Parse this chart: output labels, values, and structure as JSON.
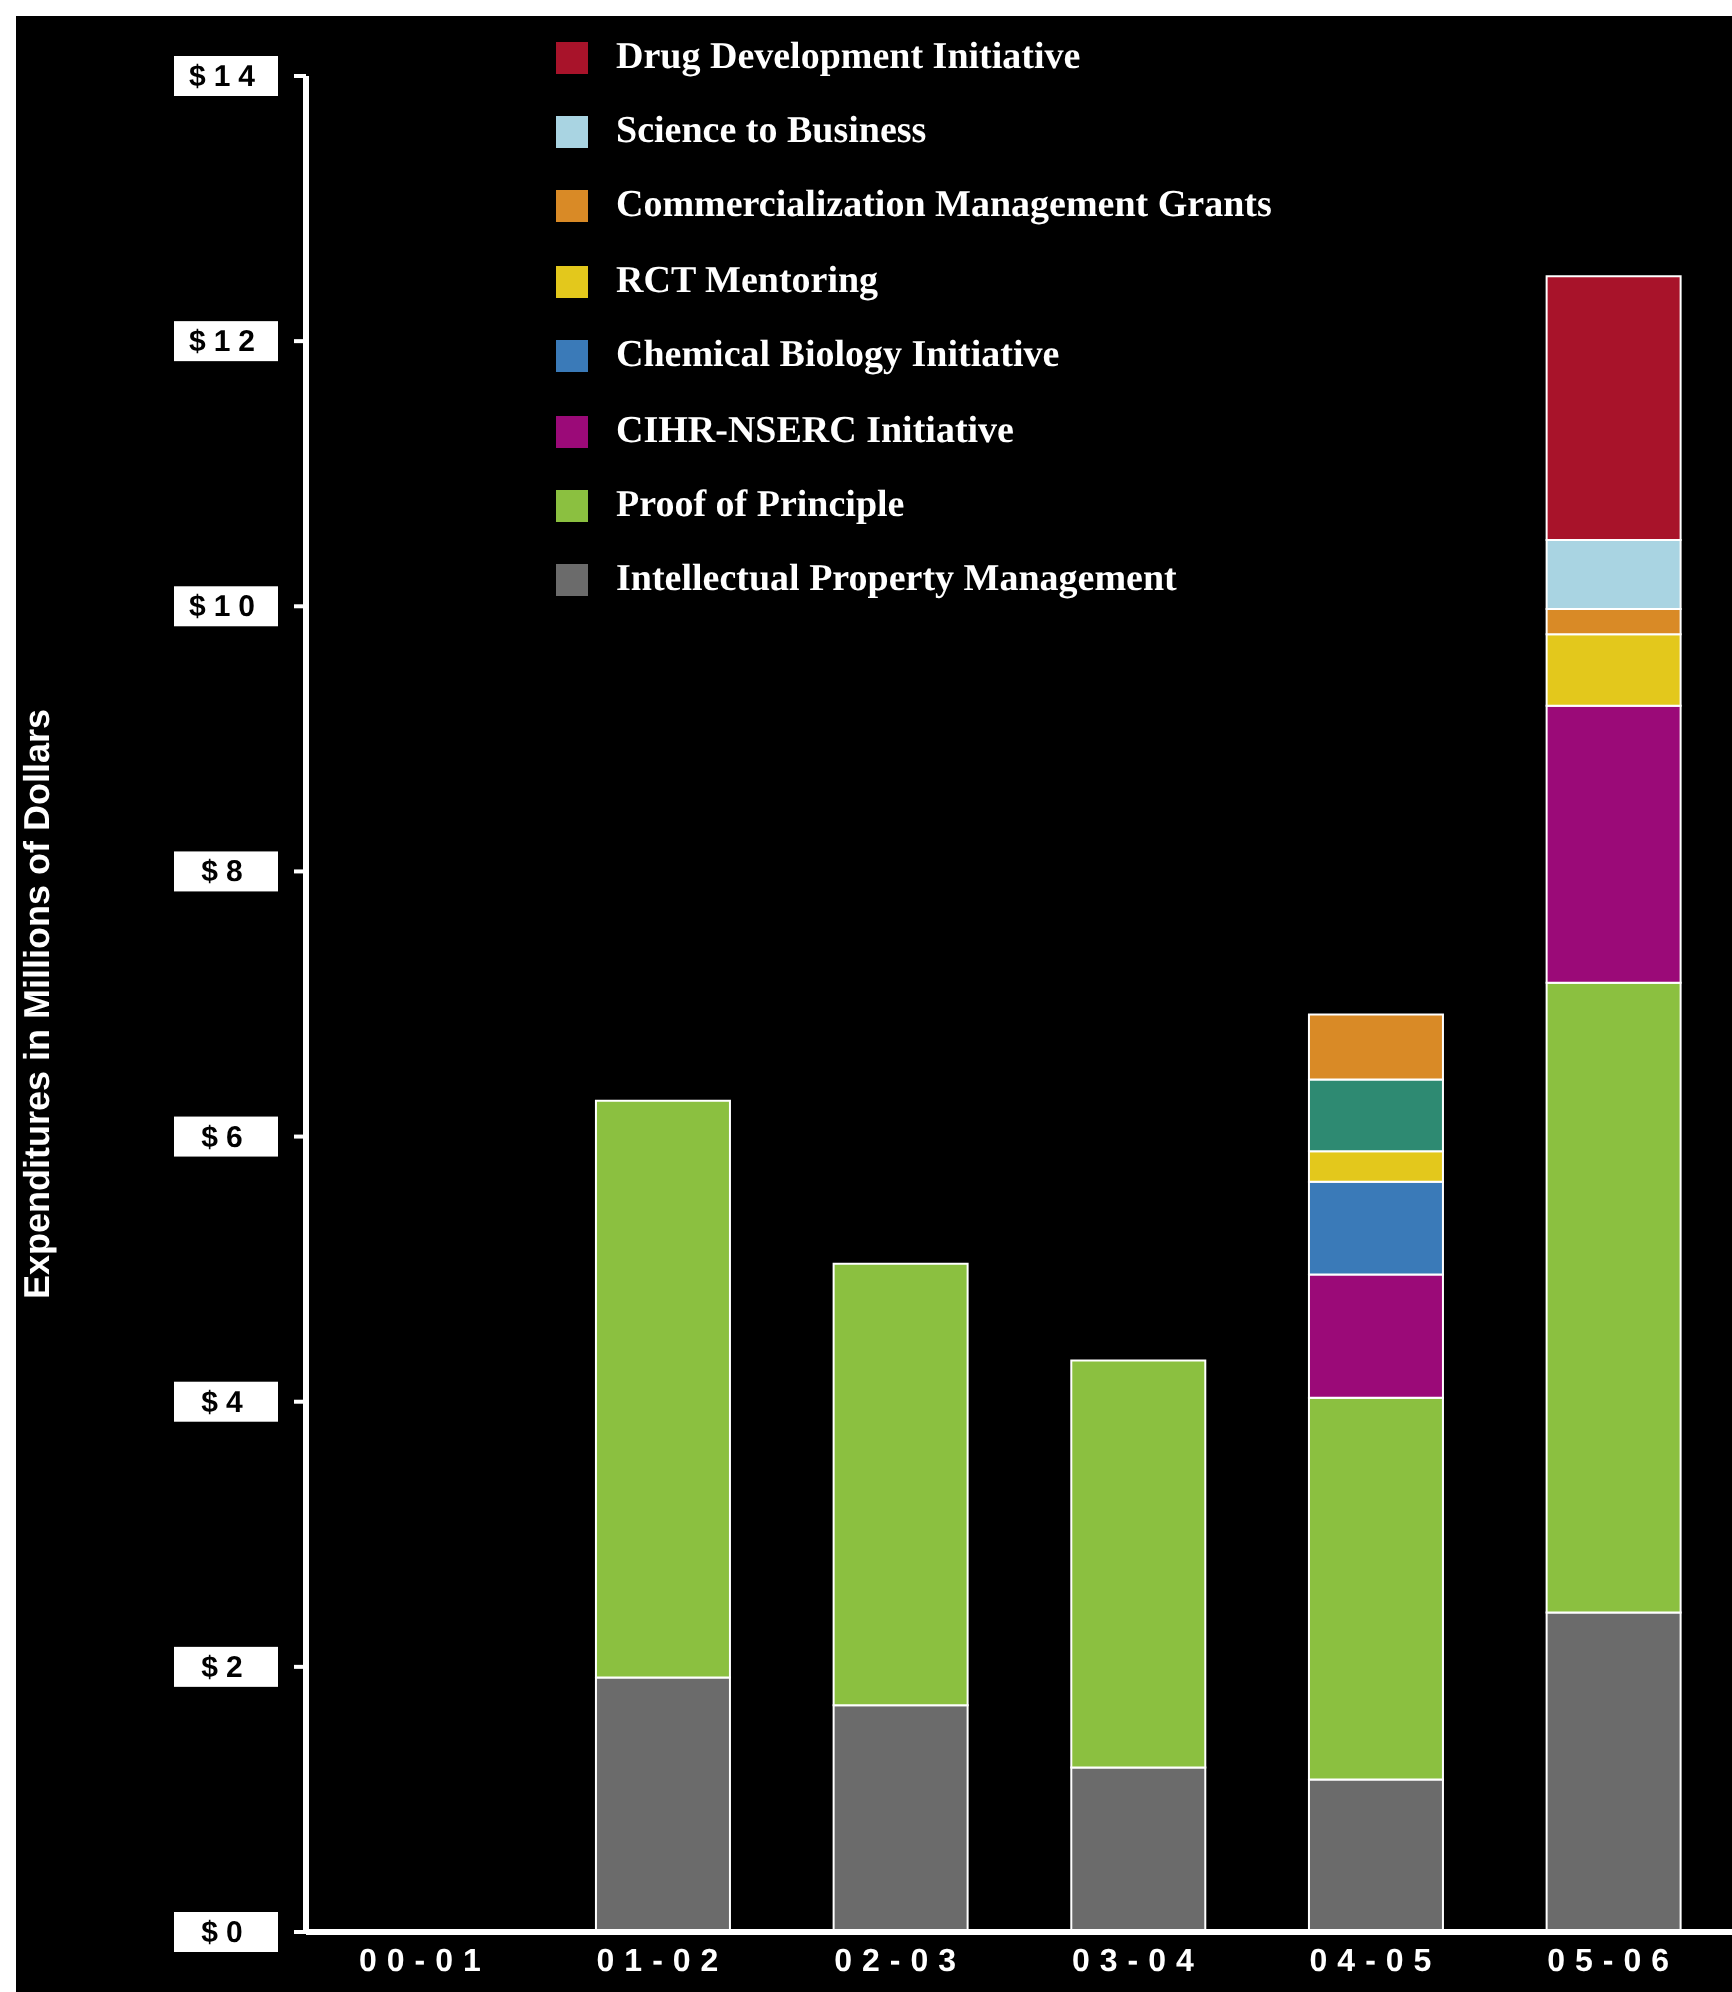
{
  "chart_data": {
    "type": "bar",
    "stacked": true,
    "ylabel": "Expenditures in Millions of Dollars",
    "categories": [
      "00-01",
      "01-02",
      "02-03",
      "03-04",
      "04-05",
      "05-06"
    ],
    "series": [
      {
        "name": "Intellectual Property Management",
        "color": "#6b6b6b",
        "values": [
          null,
          1.92,
          1.71,
          1.24,
          1.15,
          2.41
        ]
      },
      {
        "name": "Proof of Principle",
        "color": "#8bc040",
        "values": [
          null,
          4.35,
          3.33,
          3.07,
          2.88,
          4.75
        ]
      },
      {
        "name": "CIHR-NSERC Initiative",
        "color": "#9b0a78",
        "values": [
          null,
          null,
          null,
          null,
          0.93,
          2.09
        ]
      },
      {
        "name": "Chemical Biology Initiative",
        "color": "#3a7ab8",
        "values": [
          null,
          null,
          null,
          null,
          0.7,
          null
        ]
      },
      {
        "name": "RCT Mentoring",
        "color": "#e3c81c",
        "values": [
          null,
          null,
          null,
          null,
          0.23,
          0.54
        ]
      },
      {
        "color": "#2e8a72",
        "values": [
          null,
          null,
          null,
          null,
          0.54,
          null
        ]
      },
      {
        "name": "Commercialization Management Grants",
        "color": "#d98a26",
        "values": [
          null,
          null,
          null,
          null,
          0.49,
          0.19
        ]
      },
      {
        "name": "Science to Business",
        "color": "#a9d4e2",
        "values": [
          null,
          null,
          null,
          null,
          null,
          0.52
        ]
      },
      {
        "name": "Drug Development Initiative",
        "color": "#a8132a",
        "values": [
          null,
          null,
          null,
          null,
          null,
          1.99
        ]
      }
    ],
    "ylim": [
      0,
      14
    ],
    "yticks": [
      {
        "value": 0,
        "label": "$0"
      },
      {
        "value": 2,
        "label": "$2"
      },
      {
        "value": 4,
        "label": "$4"
      },
      {
        "value": 6,
        "label": "$6"
      },
      {
        "value": 8,
        "label": "$8"
      },
      {
        "value": 10,
        "label": "$10"
      },
      {
        "value": 12,
        "label": "$12"
      },
      {
        "value": 14,
        "label": "$14"
      }
    ],
    "grid": false,
    "legend": "top"
  }
}
